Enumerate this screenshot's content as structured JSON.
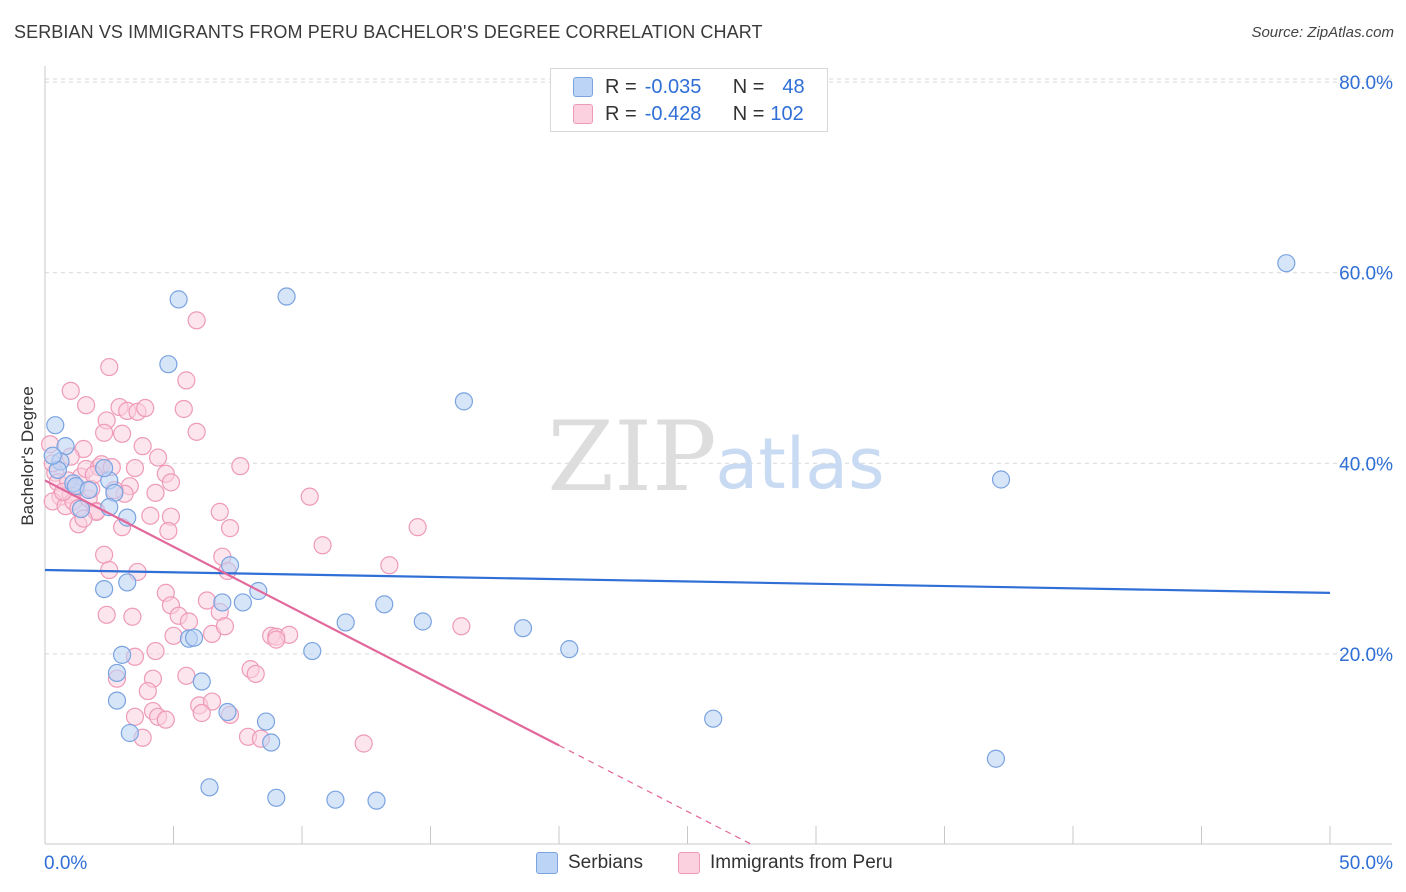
{
  "title": "SERBIAN VS IMMIGRANTS FROM PERU BACHELOR'S DEGREE CORRELATION CHART",
  "source": "Source: ZipAtlas.com",
  "watermark": {
    "zip": "ZIP",
    "atlas": "atlas"
  },
  "legend": {
    "rows": [
      {
        "r_label": "R =",
        "r_value": "-0.035",
        "n_label": "N =",
        "n_value": "48"
      },
      {
        "r_label": "R =",
        "r_value": "-0.428",
        "n_label": "N =",
        "n_value": "102"
      }
    ]
  },
  "bottom_legend": {
    "series_1": "Serbians",
    "series_2": "Immigrants from Peru"
  },
  "colors": {
    "blue_fill": "#bcd4f5",
    "blue_stroke": "#7aa3e0",
    "blue_line": "#2f6fd6",
    "pink_fill": "#fbd0df",
    "pink_stroke": "#ee9ab8",
    "pink_line": "#e2679a",
    "axis_text": "#2f6fd6",
    "grid": "#d9d9d9"
  },
  "chart_data": {
    "type": "scatter",
    "title": "SERBIAN VS IMMIGRANTS FROM PERU BACHELOR'S DEGREE CORRELATION CHART",
    "xlabel": "",
    "ylabel": "Bachelor's Degree",
    "xlim": [
      0,
      50
    ],
    "ylim": [
      0,
      82
    ],
    "x_tick_labels": [
      "0.0%",
      "50.0%"
    ],
    "y_ticks": [
      20,
      40,
      60,
      80
    ],
    "y_tick_labels": [
      "20.0%",
      "40.0%",
      "60.0%",
      "80.0%"
    ],
    "grid": true,
    "series": [
      {
        "name": "Serbians",
        "r": -0.035,
        "n": 48,
        "trend": {
          "x0": 0,
          "y0": 28.8,
          "x1": 50,
          "y1": 26.4
        },
        "points": [
          [
            0.4,
            44.0
          ],
          [
            0.8,
            41.8
          ],
          [
            0.6,
            40.2
          ],
          [
            0.5,
            39.3
          ],
          [
            1.1,
            37.9
          ],
          [
            1.2,
            37.6
          ],
          [
            1.7,
            37.2
          ],
          [
            2.5,
            38.2
          ],
          [
            2.7,
            36.9
          ],
          [
            1.4,
            35.2
          ],
          [
            2.5,
            35.4
          ],
          [
            3.2,
            34.3
          ],
          [
            2.3,
            39.5
          ],
          [
            5.2,
            57.2
          ],
          [
            9.4,
            57.5
          ],
          [
            4.8,
            50.4
          ],
          [
            16.3,
            46.5
          ],
          [
            7.2,
            29.3
          ],
          [
            3.2,
            27.5
          ],
          [
            2.3,
            26.8
          ],
          [
            8.3,
            26.6
          ],
          [
            6.9,
            25.4
          ],
          [
            7.7,
            25.4
          ],
          [
            13.2,
            25.2
          ],
          [
            11.7,
            23.3
          ],
          [
            14.7,
            23.4
          ],
          [
            18.6,
            22.7
          ],
          [
            5.6,
            21.6
          ],
          [
            5.8,
            21.7
          ],
          [
            10.4,
            20.3
          ],
          [
            20.4,
            20.5
          ],
          [
            3.0,
            19.9
          ],
          [
            2.8,
            18.0
          ],
          [
            6.1,
            17.1
          ],
          [
            2.8,
            15.1
          ],
          [
            7.1,
            13.9
          ],
          [
            8.6,
            12.9
          ],
          [
            26.0,
            13.2
          ],
          [
            3.3,
            11.7
          ],
          [
            8.8,
            10.7
          ],
          [
            6.4,
            6.0
          ],
          [
            9.0,
            4.9
          ],
          [
            11.3,
            4.7
          ],
          [
            12.9,
            4.6
          ],
          [
            37.0,
            9.0
          ],
          [
            37.2,
            38.3
          ],
          [
            48.3,
            61.0
          ],
          [
            0.3,
            40.8
          ]
        ]
      },
      {
        "name": "Immigrants from Peru",
        "r": -0.428,
        "n": 102,
        "trend": {
          "x0": 0,
          "y0": 38.2,
          "x1": 20,
          "y1": 10.4,
          "x1_dashed": 27.5,
          "y1_dashed": 0
        },
        "points": [
          [
            0.2,
            42.0
          ],
          [
            0.4,
            39.0
          ],
          [
            0.5,
            38.0
          ],
          [
            0.6,
            36.5
          ],
          [
            0.3,
            36.0
          ],
          [
            0.8,
            35.5
          ],
          [
            1.0,
            36.7
          ],
          [
            1.2,
            37.4
          ],
          [
            1.4,
            38.6
          ],
          [
            1.5,
            41.5
          ],
          [
            1.6,
            39.4
          ],
          [
            1.0,
            40.7
          ],
          [
            0.9,
            38.2
          ],
          [
            1.1,
            36.0
          ],
          [
            1.3,
            35.3
          ],
          [
            1.7,
            36.3
          ],
          [
            1.8,
            37.3
          ],
          [
            2.0,
            35.0
          ],
          [
            2.1,
            39.6
          ],
          [
            2.2,
            39.9
          ],
          [
            2.0,
            34.9
          ],
          [
            1.3,
            33.6
          ],
          [
            1.0,
            47.6
          ],
          [
            1.6,
            46.1
          ],
          [
            2.5,
            50.1
          ],
          [
            2.4,
            44.5
          ],
          [
            2.3,
            43.2
          ],
          [
            2.9,
            45.9
          ],
          [
            3.2,
            45.5
          ],
          [
            3.6,
            45.4
          ],
          [
            3.9,
            45.8
          ],
          [
            3.0,
            43.1
          ],
          [
            3.8,
            41.8
          ],
          [
            4.4,
            40.6
          ],
          [
            4.7,
            38.9
          ],
          [
            4.9,
            38.0
          ],
          [
            4.3,
            36.9
          ],
          [
            3.5,
            39.5
          ],
          [
            3.3,
            37.6
          ],
          [
            3.1,
            36.8
          ],
          [
            2.7,
            37.2
          ],
          [
            3.0,
            33.3
          ],
          [
            4.1,
            34.5
          ],
          [
            4.9,
            34.4
          ],
          [
            4.8,
            32.9
          ],
          [
            5.4,
            45.7
          ],
          [
            5.5,
            48.7
          ],
          [
            5.9,
            43.3
          ],
          [
            5.9,
            55.0
          ],
          [
            7.6,
            39.7
          ],
          [
            6.8,
            34.9
          ],
          [
            10.3,
            36.5
          ],
          [
            10.8,
            31.4
          ],
          [
            14.5,
            33.3
          ],
          [
            13.4,
            29.3
          ],
          [
            2.3,
            30.4
          ],
          [
            2.5,
            28.8
          ],
          [
            3.6,
            28.6
          ],
          [
            6.9,
            30.2
          ],
          [
            7.1,
            28.7
          ],
          [
            4.7,
            26.4
          ],
          [
            4.9,
            25.1
          ],
          [
            5.2,
            24.0
          ],
          [
            5.6,
            23.4
          ],
          [
            6.3,
            25.6
          ],
          [
            6.8,
            24.4
          ],
          [
            2.4,
            24.1
          ],
          [
            3.4,
            23.9
          ],
          [
            4.3,
            20.3
          ],
          [
            5.0,
            21.9
          ],
          [
            6.5,
            22.1
          ],
          [
            7.0,
            22.9
          ],
          [
            8.8,
            21.9
          ],
          [
            9.0,
            21.8
          ],
          [
            9.5,
            22.0
          ],
          [
            9.0,
            21.5
          ],
          [
            16.2,
            22.9
          ],
          [
            2.8,
            17.4
          ],
          [
            3.5,
            19.7
          ],
          [
            4.2,
            17.4
          ],
          [
            4.0,
            16.1
          ],
          [
            4.2,
            14.0
          ],
          [
            5.5,
            17.7
          ],
          [
            6.0,
            14.6
          ],
          [
            6.5,
            15.0
          ],
          [
            6.1,
            13.8
          ],
          [
            7.2,
            13.6
          ],
          [
            8.0,
            18.4
          ],
          [
            8.2,
            17.9
          ],
          [
            7.9,
            11.3
          ],
          [
            8.4,
            11.1
          ],
          [
            3.5,
            13.4
          ],
          [
            4.4,
            13.4
          ],
          [
            4.7,
            13.1
          ],
          [
            3.8,
            11.2
          ],
          [
            12.4,
            10.6
          ],
          [
            0.3,
            40.0
          ],
          [
            0.7,
            37.0
          ],
          [
            1.9,
            38.8
          ],
          [
            1.5,
            34.2
          ],
          [
            2.6,
            39.6
          ],
          [
            7.2,
            33.2
          ]
        ]
      }
    ]
  }
}
